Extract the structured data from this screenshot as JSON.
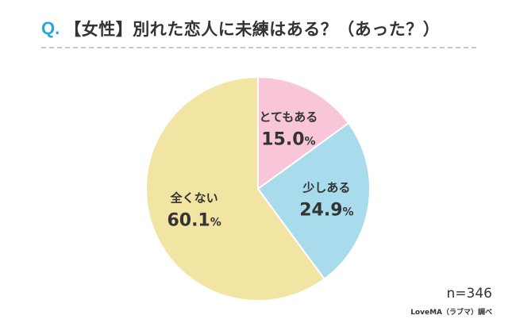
{
  "header": {
    "q_marker": "Q.",
    "question": "【女性】別れた恋人に未練はある？（あった？）"
  },
  "chart_data": {
    "type": "pie",
    "slices": [
      {
        "label": "とてもある",
        "value": 15.0,
        "value_text": "15.0",
        "color": "#f9c5d9"
      },
      {
        "label": "少しある",
        "value": 24.9,
        "value_text": "24.9",
        "color": "#a8dcec"
      },
      {
        "label": "全くない",
        "value": 60.1,
        "value_text": "60.1",
        "color": "#f2e4a2"
      }
    ],
    "unit": "%",
    "start": "top",
    "direction": "clockwise"
  },
  "footer": {
    "sample_size": "n=346",
    "source": "LoveMA（ラブマ）調べ"
  }
}
